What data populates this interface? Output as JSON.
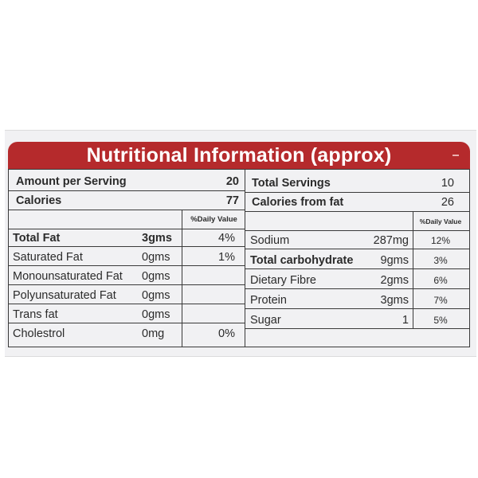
{
  "title": "Nutritional Information (approx)",
  "summary": {
    "serving_label": "Amount per Serving",
    "serving_value": "20",
    "total_servings_label": "Total Servings",
    "total_servings_value": "10",
    "calories_label": "Calories",
    "calories_value": "77",
    "calories_fat_label": "Calories from fat",
    "calories_fat_value": "26"
  },
  "left_header": {
    "daily_value": "%Daily Value"
  },
  "right_header": {
    "daily_value": "%Daily Value"
  },
  "left_rows": [
    {
      "name": "Total Fat",
      "amount": "3gms",
      "dv": "4%"
    },
    {
      "name": "Saturated Fat",
      "amount": "0gms",
      "dv": "1%"
    },
    {
      "name": "Monounsaturated Fat",
      "amount": "0gms",
      "dv": ""
    },
    {
      "name": "Polyunsaturated Fat",
      "amount": "0gms",
      "dv": ""
    },
    {
      "name": "Trans fat",
      "amount": "0gms",
      "dv": ""
    },
    {
      "name": "Cholestrol",
      "amount": "0mg",
      "dv": "0%"
    }
  ],
  "right_rows": [
    {
      "name": "Sodium",
      "amount": "287mg",
      "dv": "12%"
    },
    {
      "name": "Total carbohydrate",
      "amount": "9gms",
      "dv": "3%"
    },
    {
      "name": "Dietary Fibre",
      "amount": "2gms",
      "dv": "6%"
    },
    {
      "name": "Protein",
      "amount": "3gms",
      "dv": "7%"
    },
    {
      "name": "Sugar",
      "amount": "1",
      "dv": "5%"
    }
  ],
  "colors": {
    "banner": "#b52a2c",
    "background": "#f1f1f3",
    "lines": "#3a3a3a"
  }
}
